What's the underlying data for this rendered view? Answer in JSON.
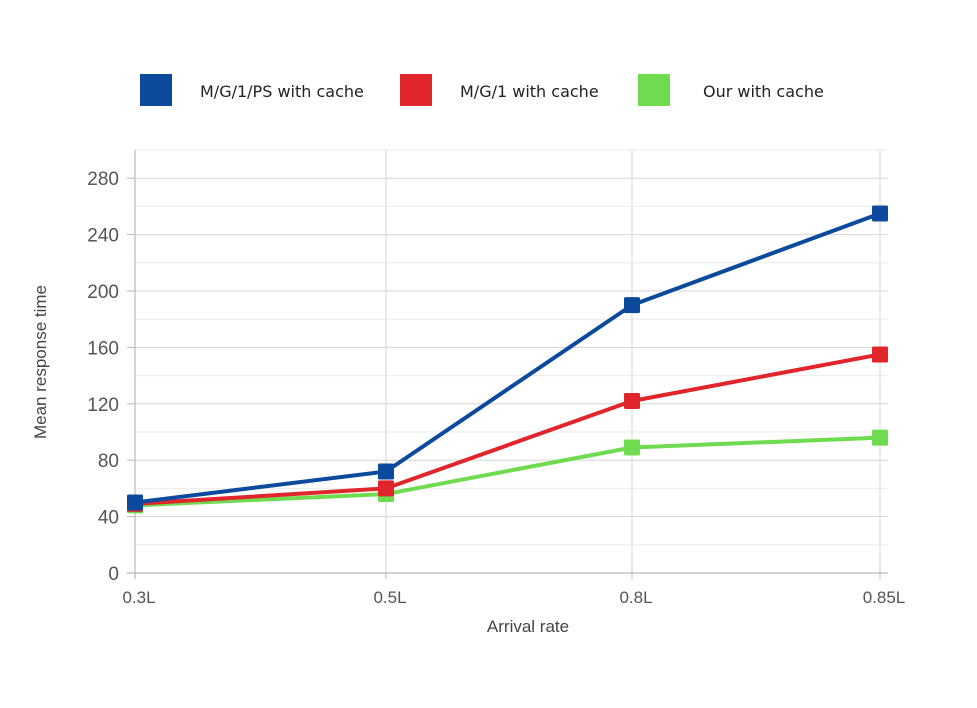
{
  "chart_data": {
    "type": "line",
    "title": "",
    "xlabel": "Arrival rate",
    "ylabel": "Mean response time",
    "categories": [
      "0.3L",
      "0.5L",
      "0.8L",
      "0.85L"
    ],
    "ylim": [
      0,
      300
    ],
    "yticks": [
      0,
      40,
      80,
      120,
      160,
      200,
      240,
      280
    ],
    "grid": true,
    "legend_position": "top",
    "series": [
      {
        "name": "M/G/1/PS with cache",
        "color": "#0b4a9c",
        "values": [
          50,
          72,
          190,
          255
        ]
      },
      {
        "name": "M/G/1 with cache",
        "color": "#e0252b",
        "values": [
          49,
          60,
          122,
          155
        ]
      },
      {
        "name": "Our with cache",
        "color": "#6fdc50",
        "values": [
          48,
          56,
          89,
          96
        ]
      }
    ]
  }
}
